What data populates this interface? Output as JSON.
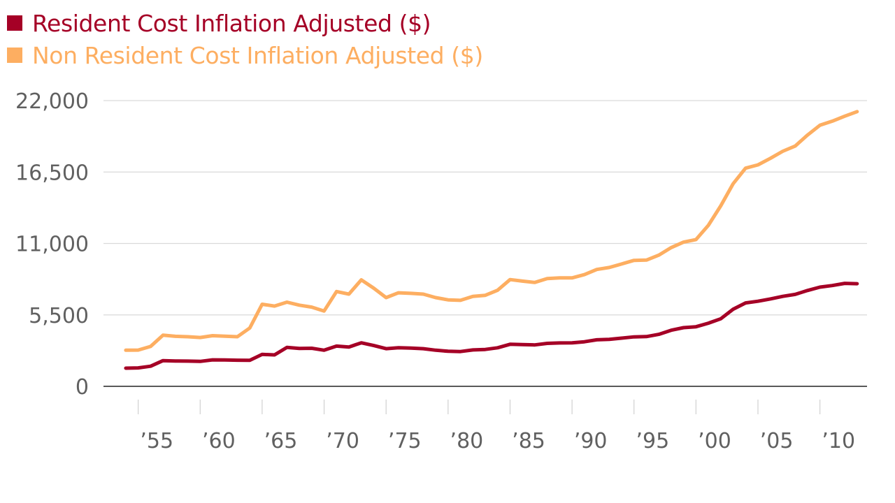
{
  "chart_data": {
    "type": "line",
    "title": "",
    "xlabel": "",
    "ylabel": "",
    "x": [
      1953,
      1954,
      1955,
      1956,
      1957,
      1958,
      1959,
      1960,
      1961,
      1962,
      1963,
      1964,
      1965,
      1966,
      1967,
      1968,
      1969,
      1970,
      1971,
      1972,
      1973,
      1974,
      1975,
      1976,
      1977,
      1978,
      1979,
      1980,
      1981,
      1982,
      1983,
      1984,
      1985,
      1986,
      1987,
      1988,
      1989,
      1990,
      1991,
      1992,
      1993,
      1994,
      1995,
      1996,
      1997,
      1998,
      1999,
      2000,
      2001,
      2002,
      2003,
      2004,
      2005,
      2006,
      2007,
      2008,
      2009,
      2010,
      2011,
      2012
    ],
    "series": [
      {
        "name": "Resident Cost Inflation Adjusted ($)",
        "color": "#a50026",
        "values": [
          1400,
          1420,
          1550,
          1980,
          1950,
          1940,
          1920,
          2040,
          2030,
          2010,
          2000,
          2460,
          2420,
          3000,
          2920,
          2930,
          2780,
          3100,
          3030,
          3350,
          3140,
          2900,
          2970,
          2950,
          2900,
          2780,
          2700,
          2680,
          2800,
          2840,
          2970,
          3240,
          3210,
          3190,
          3310,
          3340,
          3350,
          3430,
          3580,
          3620,
          3710,
          3810,
          3830,
          4000,
          4320,
          4520,
          4590,
          4860,
          5200,
          5940,
          6420,
          6550,
          6730,
          6930,
          7080,
          7380,
          7640,
          7760,
          7930,
          7900
        ]
      },
      {
        "name": "Non Resident Cost Inflation Adjusted ($)",
        "color": "#fdae61",
        "values": [
          2780,
          2790,
          3070,
          3940,
          3850,
          3820,
          3760,
          3900,
          3860,
          3820,
          4490,
          6320,
          6180,
          6480,
          6250,
          6100,
          5800,
          7300,
          7100,
          8200,
          7560,
          6830,
          7200,
          7160,
          7100,
          6830,
          6660,
          6620,
          6930,
          7010,
          7400,
          8220,
          8100,
          8000,
          8300,
          8350,
          8350,
          8600,
          9000,
          9150,
          9420,
          9700,
          9720,
          10100,
          10680,
          11100,
          11300,
          12400,
          13900,
          15600,
          16800,
          17050,
          17550,
          18100,
          18500,
          19350,
          20100,
          20420,
          20800,
          21150
        ]
      }
    ],
    "ylim": [
      0,
      22000
    ],
    "y_ticks": [
      0,
      5500,
      11000,
      16500,
      22000
    ],
    "y_tick_labels": [
      "0",
      "5,500",
      "11,000",
      "16,500",
      "22,000"
    ],
    "x_range": [
      1951.2,
      2012.8
    ],
    "x_ticks_minor": [
      1954,
      1959,
      1964,
      1969,
      1974,
      1979,
      1984,
      1989,
      1994,
      1999,
      2004,
      2009
    ],
    "x_tick_labels": [
      {
        "x": 1955.5,
        "label": "’55"
      },
      {
        "x": 1960.5,
        "label": "’60"
      },
      {
        "x": 1965.5,
        "label": "’65"
      },
      {
        "x": 1970.5,
        "label": "’70"
      },
      {
        "x": 1975.5,
        "label": "’75"
      },
      {
        "x": 1980.5,
        "label": "’80"
      },
      {
        "x": 1985.5,
        "label": "’85"
      },
      {
        "x": 1990.5,
        "label": "’90"
      },
      {
        "x": 1995.5,
        "label": "’95"
      },
      {
        "x": 2000.5,
        "label": "’00"
      },
      {
        "x": 2005.5,
        "label": "’05"
      },
      {
        "x": 2010.5,
        "label": "’10"
      }
    ],
    "grid": true,
    "legend_placement": "top-left"
  }
}
